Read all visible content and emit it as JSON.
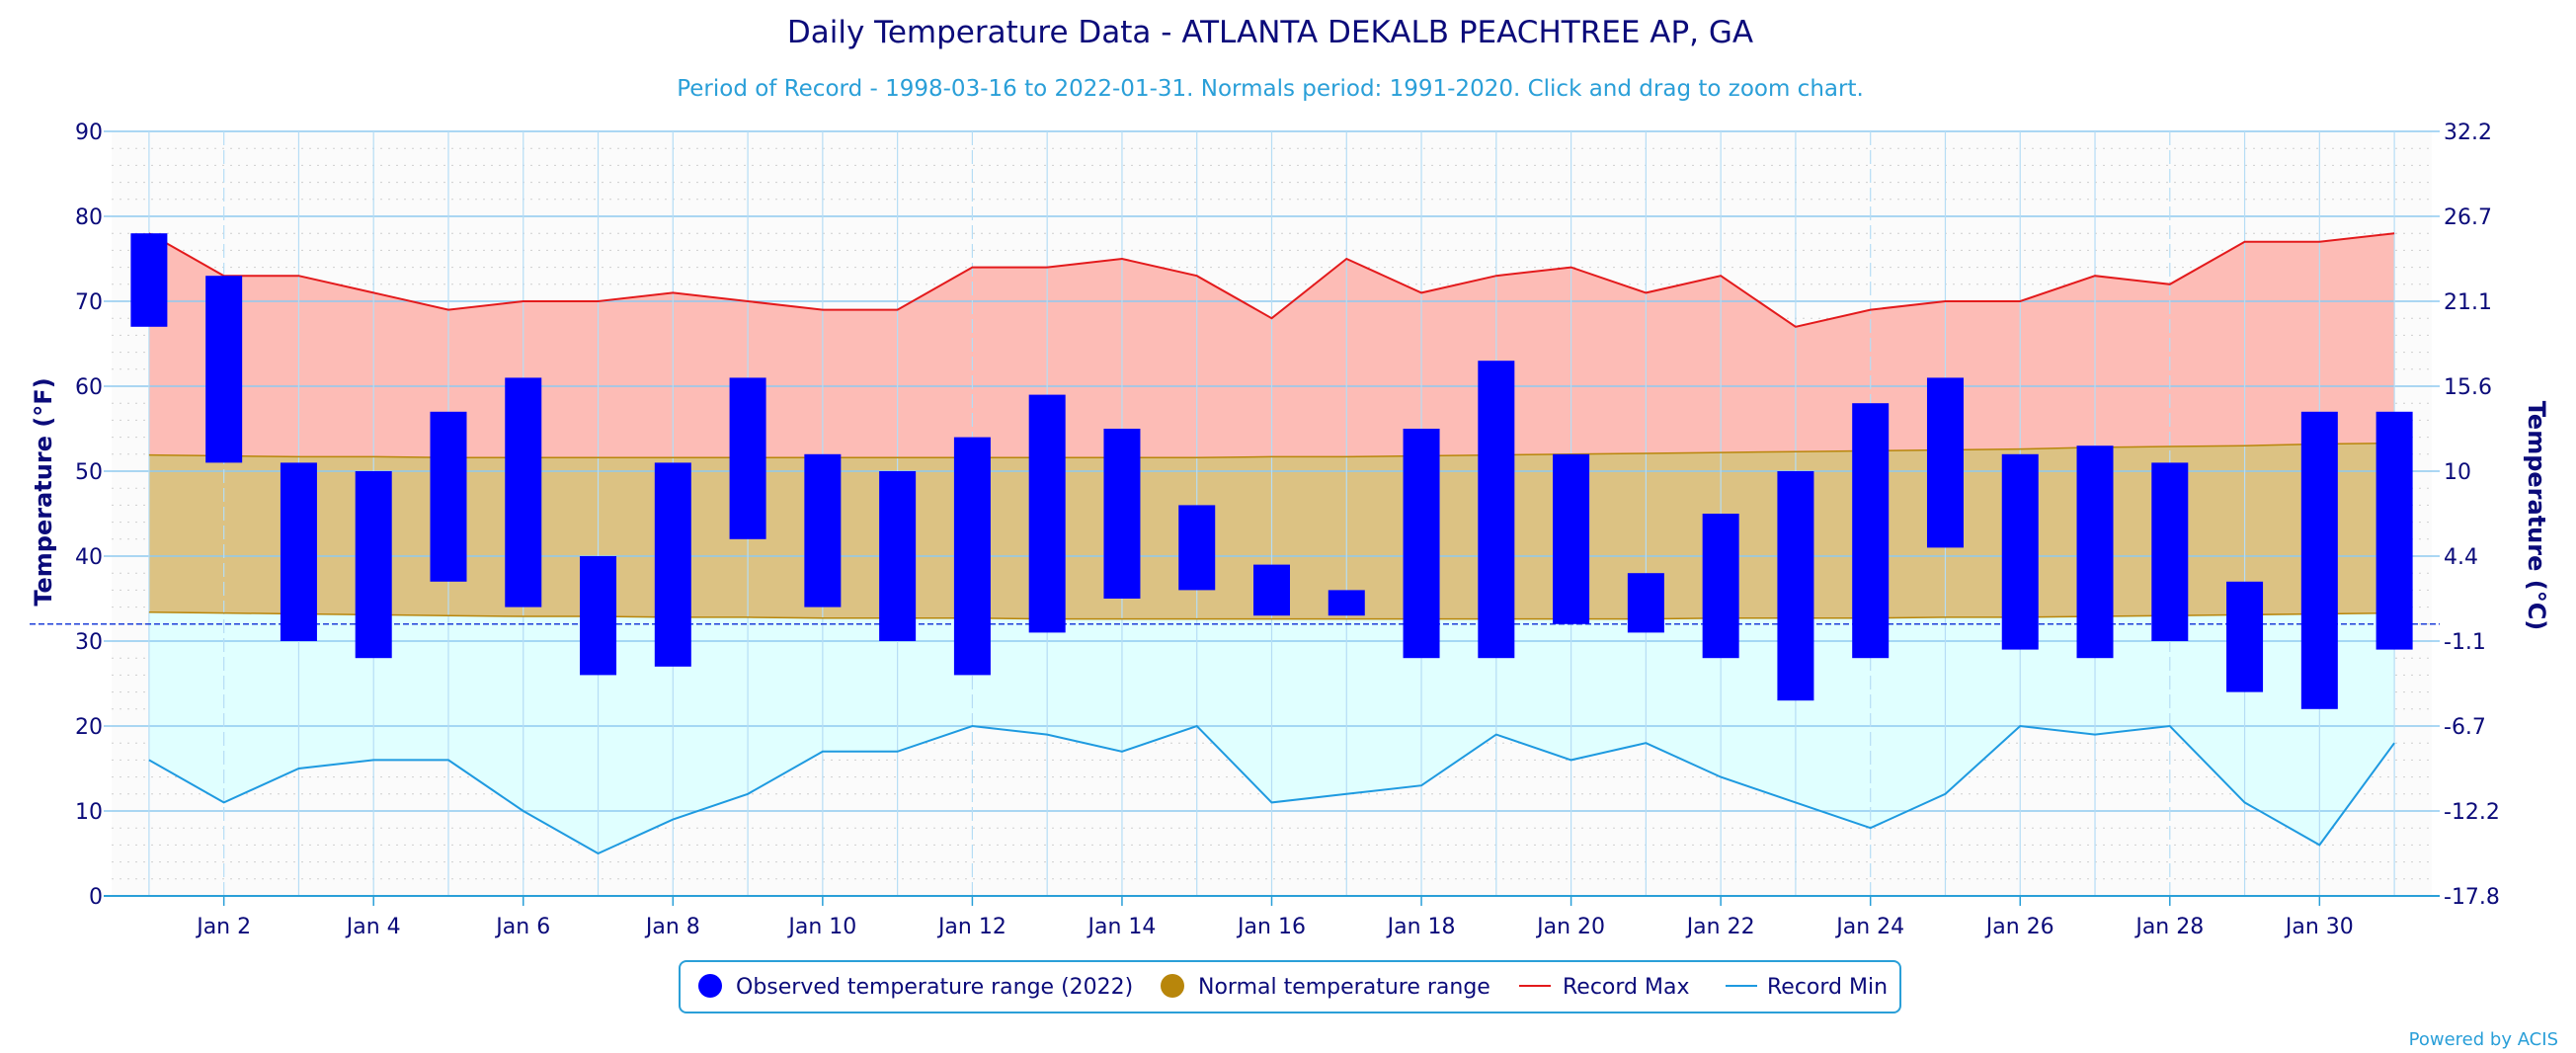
{
  "chart_data": {
    "type": "bar",
    "title": "Daily Temperature Data - ATLANTA DEKALB PEACHTREE AP, GA",
    "subtitle": "Period of Record - 1998-03-16 to 2022-01-31. Normals period: 1991-2020. Click and drag to zoom chart.",
    "ylabel_left": "Temperature (°F)",
    "ylabel_right": "Temperature (°C)",
    "ylim": [
      0,
      90
    ],
    "y_ticks": [
      0,
      10,
      20,
      30,
      40,
      50,
      60,
      70,
      80,
      90
    ],
    "y_ticks_right": [
      "-17.8",
      "-12.2",
      "-6.7",
      "-1.1",
      "4.4",
      "10",
      "15.6",
      "21.1",
      "26.7",
      "32.2"
    ],
    "xlim": [
      0.5,
      31.5
    ],
    "x_ticks": [
      2,
      4,
      6,
      8,
      10,
      12,
      14,
      16,
      18,
      20,
      22,
      24,
      26,
      28,
      30
    ],
    "x_tick_labels": [
      "Jan 2",
      "Jan 4",
      "Jan 6",
      "Jan 8",
      "Jan 10",
      "Jan 12",
      "Jan 14",
      "Jan 16",
      "Jan 18",
      "Jan 20",
      "Jan 22",
      "Jan 24",
      "Jan 26",
      "Jan 28",
      "Jan 30"
    ],
    "freezing_line": 32,
    "grid": true,
    "legend_position": "bottom-center",
    "days": [
      1,
      2,
      3,
      4,
      5,
      6,
      7,
      8,
      9,
      10,
      11,
      12,
      13,
      14,
      15,
      16,
      17,
      18,
      19,
      20,
      21,
      22,
      23,
      24,
      25,
      26,
      27,
      28,
      29,
      30,
      31
    ],
    "series": [
      {
        "name": "Observed temperature range (2022)",
        "color": "#0000ff",
        "high": [
          78,
          73,
          51,
          50,
          57,
          61,
          40,
          51,
          61,
          52,
          50,
          54,
          59,
          55,
          46,
          39,
          36,
          55,
          63,
          52,
          38,
          45,
          50,
          58,
          61,
          52,
          53,
          51,
          37,
          57,
          57
        ],
        "low": [
          67,
          51,
          30,
          28,
          37,
          34,
          26,
          27,
          42,
          34,
          30,
          26,
          31,
          35,
          36,
          33,
          33,
          28,
          28,
          32,
          31,
          28,
          23,
          28,
          41,
          29,
          28,
          30,
          24,
          22,
          29
        ]
      },
      {
        "name": "Normal temperature range",
        "color": "#b8860b",
        "high": [
          51.9,
          51.8,
          51.7,
          51.7,
          51.6,
          51.6,
          51.6,
          51.6,
          51.6,
          51.6,
          51.6,
          51.6,
          51.6,
          51.6,
          51.6,
          51.7,
          51.7,
          51.8,
          51.9,
          52.0,
          52.1,
          52.2,
          52.3,
          52.4,
          52.5,
          52.6,
          52.8,
          52.9,
          53.0,
          53.2,
          53.3
        ],
        "low": [
          33.4,
          33.3,
          33.2,
          33.1,
          33.0,
          32.9,
          32.9,
          32.8,
          32.8,
          32.7,
          32.7,
          32.7,
          32.6,
          32.6,
          32.6,
          32.6,
          32.6,
          32.6,
          32.6,
          32.6,
          32.6,
          32.7,
          32.7,
          32.7,
          32.8,
          32.8,
          32.9,
          33.0,
          33.1,
          33.2,
          33.3
        ]
      },
      {
        "name": "Record Max",
        "color": "#e31a1c",
        "values": [
          78,
          73,
          73,
          71,
          69,
          70,
          70,
          71,
          70,
          69,
          69,
          74,
          74,
          75,
          73,
          68,
          75,
          71,
          73,
          74,
          71,
          73,
          67,
          69,
          70,
          70,
          73,
          72,
          77,
          77,
          78
        ]
      },
      {
        "name": "Record Min",
        "color": "#1e9ae0",
        "values": [
          16,
          11,
          15,
          16,
          16,
          10,
          5,
          9,
          12,
          17,
          17,
          20,
          19,
          17,
          20,
          11,
          12,
          13,
          19,
          16,
          18,
          14,
          11,
          8,
          12,
          20,
          19,
          20,
          11,
          6,
          18
        ]
      }
    ],
    "credit": "Powered by ACIS"
  }
}
